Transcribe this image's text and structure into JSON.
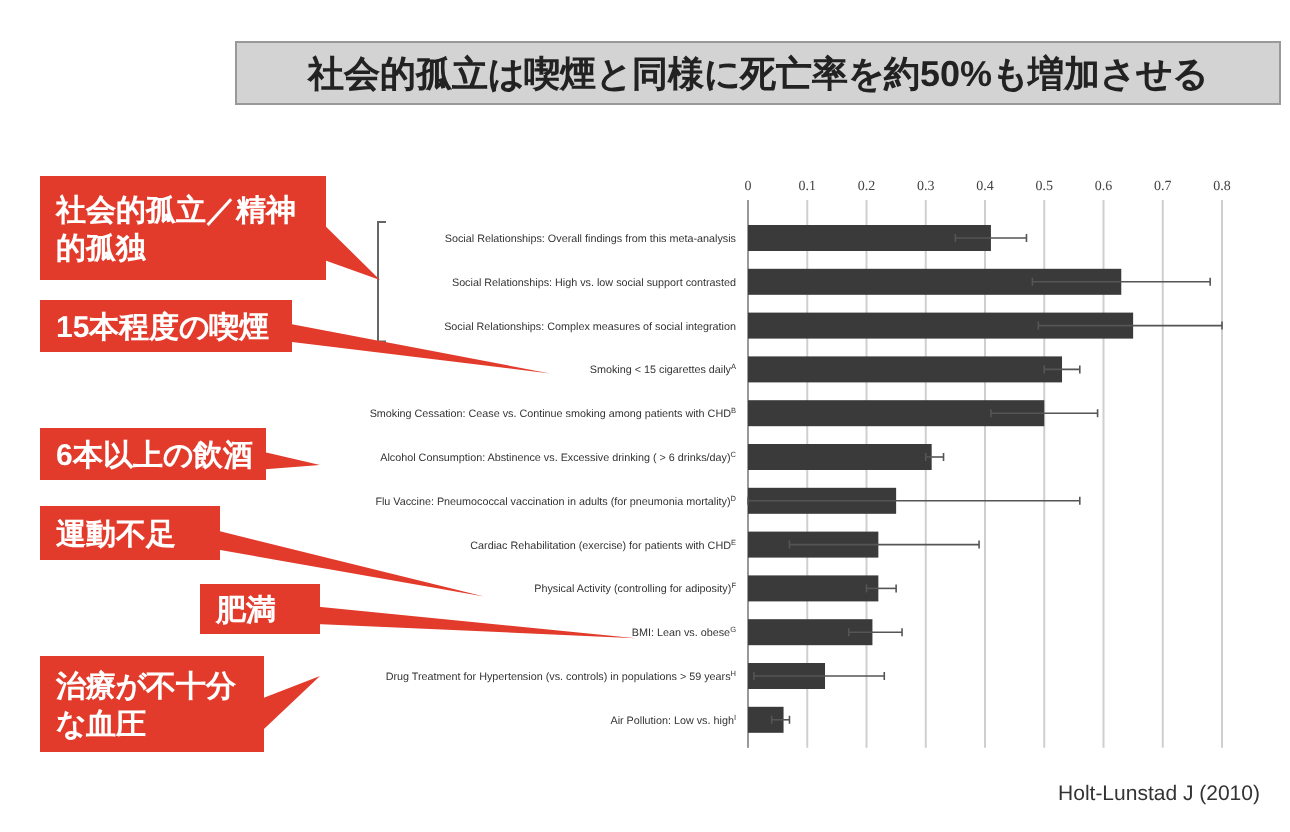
{
  "chart_data": {
    "type": "bar",
    "orientation": "horizontal",
    "title": "社会的孤立は喫煙と同様に死亡率を約50%も増加させる",
    "categories": [
      "Social Relationships: Overall findings from this meta-analysis",
      "Social Relationships: High vs. low social support contrasted",
      "Social Relationships: Complex measures of social integration",
      "Smoking < 15 cigarettes daily$^{A}$",
      "Smoking Cessation: Cease vs. Continue smoking among patients with CHD$^{B}$",
      "Alcohol Consumption: Abstinence vs. Excessive drinking ( > 6 drinks/day)$^{C}$",
      "Flu Vaccine: Pneumococcal vaccination in adults (for pneumonia mortality)$^{D}$",
      "Cardiac Rehabilitation (exercise) for patients with CHD$^{E}$",
      "Physical Activity (controlling for adiposity)$^{F}$",
      "BMI: Lean vs. obese$^{G}$",
      "Drug Treatment for Hypertension (vs. controls) in populations > 59 years$^{H}$",
      "Air Pollution: Low vs. high$^{I}$"
    ],
    "values": [
      0.41,
      0.63,
      0.65,
      0.53,
      0.5,
      0.31,
      0.25,
      0.22,
      0.22,
      0.21,
      0.13,
      0.06
    ],
    "errors": [
      [
        0.35,
        0.47
      ],
      [
        0.48,
        0.78
      ],
      [
        0.49,
        0.8
      ],
      [
        0.5,
        0.56
      ],
      [
        0.41,
        0.59
      ],
      [
        0.3,
        0.33
      ],
      [
        0.0,
        0.56
      ],
      [
        0.07,
        0.39
      ],
      [
        0.2,
        0.25
      ],
      [
        0.17,
        0.26
      ],
      [
        0.01,
        0.23
      ],
      [
        0.04,
        0.07
      ]
    ],
    "color": "#3a3a3a",
    "xlim": [
      0,
      0.8
    ],
    "xticks": [
      0,
      0.1,
      0.2,
      0.3,
      0.4,
      0.5,
      0.6,
      0.7,
      0.8
    ],
    "grid": "x",
    "annotations": [
      "社会的孤立／精神的孤独",
      "15本程度の喫煙",
      "6本以上の飲酒",
      "運動不足",
      "肥満",
      "治療が不十分な血圧",
      "Holt-Lunstad J (2010)"
    ]
  }
}
